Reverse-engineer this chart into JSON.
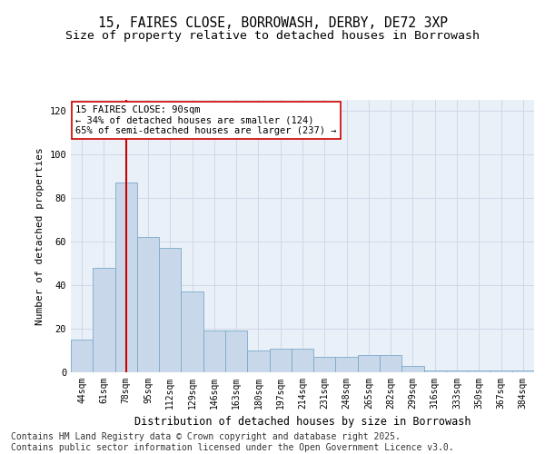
{
  "title_line1": "15, FAIRES CLOSE, BORROWASH, DERBY, DE72 3XP",
  "title_line2": "Size of property relative to detached houses in Borrowash",
  "xlabel": "Distribution of detached houses by size in Borrowash",
  "ylabel": "Number of detached properties",
  "categories": [
    "44sqm",
    "61sqm",
    "78sqm",
    "95sqm",
    "112sqm",
    "129sqm",
    "146sqm",
    "163sqm",
    "180sqm",
    "197sqm",
    "214sqm",
    "231sqm",
    "248sqm",
    "265sqm",
    "282sqm",
    "299sqm",
    "316sqm",
    "333sqm",
    "350sqm",
    "367sqm",
    "384sqm"
  ],
  "values": [
    15,
    48,
    87,
    62,
    57,
    37,
    19,
    19,
    10,
    11,
    11,
    7,
    7,
    8,
    8,
    3,
    1,
    1,
    1,
    1,
    1
  ],
  "bar_color": "#c8d8ea",
  "bar_edge_color": "#7aaac8",
  "vline_x": 2.0,
  "vline_color": "#cc0000",
  "annotation_text": "15 FAIRES CLOSE: 90sqm\n← 34% of detached houses are smaller (124)\n65% of semi-detached houses are larger (237) →",
  "annotation_box_color": "#ffffff",
  "annotation_box_edge": "#cc0000",
  "ylim": [
    0,
    125
  ],
  "yticks": [
    0,
    20,
    40,
    60,
    80,
    100,
    120
  ],
  "grid_color": "#d0d8e8",
  "background_color": "#eaf0f8",
  "footer_line1": "Contains HM Land Registry data © Crown copyright and database right 2025.",
  "footer_line2": "Contains public sector information licensed under the Open Government Licence v3.0.",
  "title_fontsize": 10.5,
  "subtitle_fontsize": 9.5,
  "annotation_fontsize": 7.5,
  "axis_label_fontsize": 8,
  "tick_fontsize": 7,
  "footer_fontsize": 7
}
